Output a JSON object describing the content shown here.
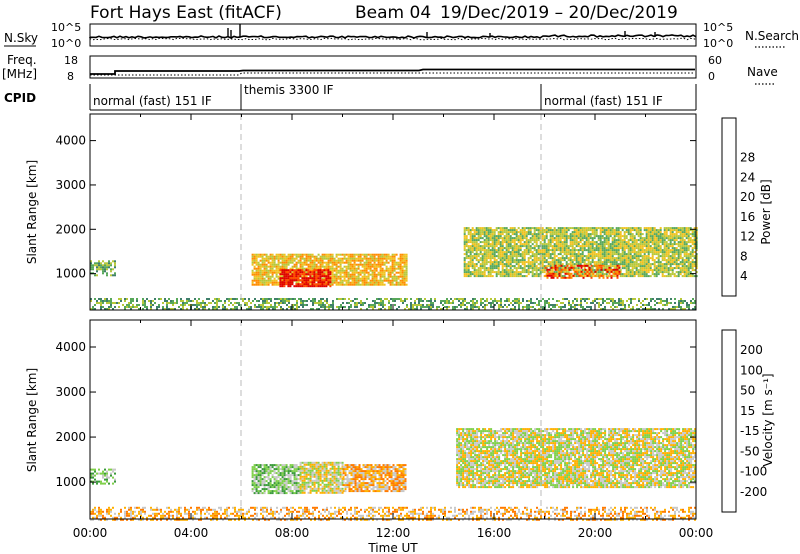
{
  "header": {
    "title": "Fort Hays East (fitACF)",
    "beam": "Beam 04",
    "date_range": "19/Dec/2019 – 20/Dec/2019"
  },
  "noise_panel": {
    "left_label": "N.Sky",
    "left_ticks": [
      "10^5",
      "10^0"
    ],
    "right_ticks": [
      "10^5",
      "10^0"
    ],
    "right_label": "N.Search",
    "right_line_style": "dotted"
  },
  "freq_panel": {
    "left_label_1": "Freq.",
    "left_label_2": "[MHz]",
    "left_ticks": [
      "18",
      "8"
    ],
    "right_ticks": [
      "60",
      "0"
    ],
    "right_label": "Nave",
    "right_line_style": "dotted"
  },
  "cpid": {
    "label": "CPID",
    "modes": [
      {
        "start_hour": 0,
        "end_hour": 6,
        "text": "normal (fast) 151 IF"
      },
      {
        "start_hour": 6,
        "end_hour": 18,
        "text": "themis 3300 IF"
      },
      {
        "start_hour": 18,
        "end_hour": 24,
        "text": "normal (fast) 151 IF"
      }
    ]
  },
  "chart_data": [
    {
      "type": "heatmap",
      "parameter": "Power",
      "ylabel": "Slant Range [km]",
      "ylim": [
        180,
        4600
      ],
      "yticks": [
        1000,
        2000,
        3000,
        4000
      ],
      "xlim_hours": [
        0,
        24
      ],
      "colorbar": {
        "label": "Power [dB]",
        "ticks": [
          "4",
          "8",
          "12",
          "16",
          "20",
          "24",
          "28"
        ],
        "colors": [
          "#1515ff",
          "#2456a8",
          "#3f7f6a",
          "#58a85a",
          "#b7c83a",
          "#f0c21f",
          "#ff8c00",
          "#ff4a00",
          "#e00000"
        ]
      },
      "scatter_regions": [
        {
          "t": [
            0.0,
            1.0
          ],
          "r": [
            950,
            1300
          ],
          "level": 3
        },
        {
          "t": [
            6.4,
            12.5
          ],
          "r": [
            750,
            1450
          ],
          "level": 5
        },
        {
          "t": [
            7.5,
            9.5
          ],
          "r": [
            700,
            1100
          ],
          "level": 8
        },
        {
          "t": [
            14.8,
            24.0
          ],
          "r": [
            950,
            2050
          ],
          "level": 4
        },
        {
          "t": [
            18.0,
            21.0
          ],
          "r": [
            900,
            1200
          ],
          "level": 7
        },
        {
          "t": [
            0.0,
            24.0
          ],
          "r": [
            180,
            450
          ],
          "level": 3
        }
      ]
    },
    {
      "type": "heatmap",
      "parameter": "Velocity",
      "ylabel": "Slant Range [km]",
      "ylim": [
        180,
        4600
      ],
      "yticks": [
        1000,
        2000,
        3000,
        4000
      ],
      "xlim_hours": [
        0,
        24
      ],
      "colorbar": {
        "label": "Velocity [m s⁻¹]",
        "ticks": [
          "200",
          "100",
          "50",
          "15",
          "-15",
          "-50",
          "-100",
          "-200"
        ],
        "colors": [
          "#1a3fd8",
          "#2f6f8c",
          "#3a9a3a",
          "#7fd04a",
          "#c8c8c8",
          "#ffb000",
          "#ff7a00",
          "#ff3a00",
          "#e00000"
        ]
      },
      "scatter_regions": [
        {
          "t": [
            0.0,
            1.0
          ],
          "r": [
            950,
            1300
          ],
          "level": 3
        },
        {
          "t": [
            6.4,
            8.3
          ],
          "r": [
            750,
            1400
          ],
          "level": 3
        },
        {
          "t": [
            8.3,
            10.0
          ],
          "r": [
            750,
            1450
          ],
          "level": 4
        },
        {
          "t": [
            10.0,
            12.5
          ],
          "r": [
            800,
            1400
          ],
          "level": 5
        },
        {
          "t": [
            14.5,
            24.0
          ],
          "r": [
            900,
            2200
          ],
          "level": 4
        },
        {
          "t": [
            0.0,
            24.0
          ],
          "r": [
            180,
            450
          ],
          "level": 5
        }
      ]
    }
  ],
  "x_axis": {
    "ticks": [
      "00:00",
      "04:00",
      "08:00",
      "12:00",
      "16:00",
      "20:00",
      "00:00"
    ],
    "label": "Time UT"
  }
}
